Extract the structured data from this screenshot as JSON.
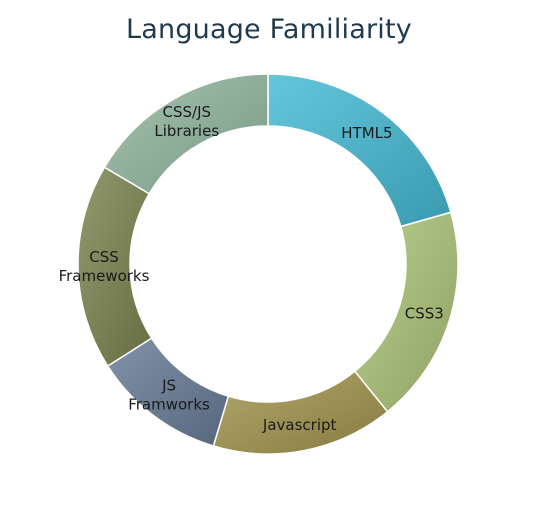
{
  "chart_data": {
    "type": "pie",
    "title": "Language Familiarity",
    "donut": true,
    "categories": [
      "HTML5",
      "CSS3",
      "Javascript",
      "JS Framworks",
      "CSS Frameworks",
      "CSS/JS Libraries"
    ],
    "values": [
      20,
      18,
      15,
      11,
      17,
      16
    ],
    "colors": [
      "#4fb0c6",
      "#a4b979",
      "#9c9156",
      "#6c7d93",
      "#7b8458",
      "#8fae9a"
    ]
  }
}
